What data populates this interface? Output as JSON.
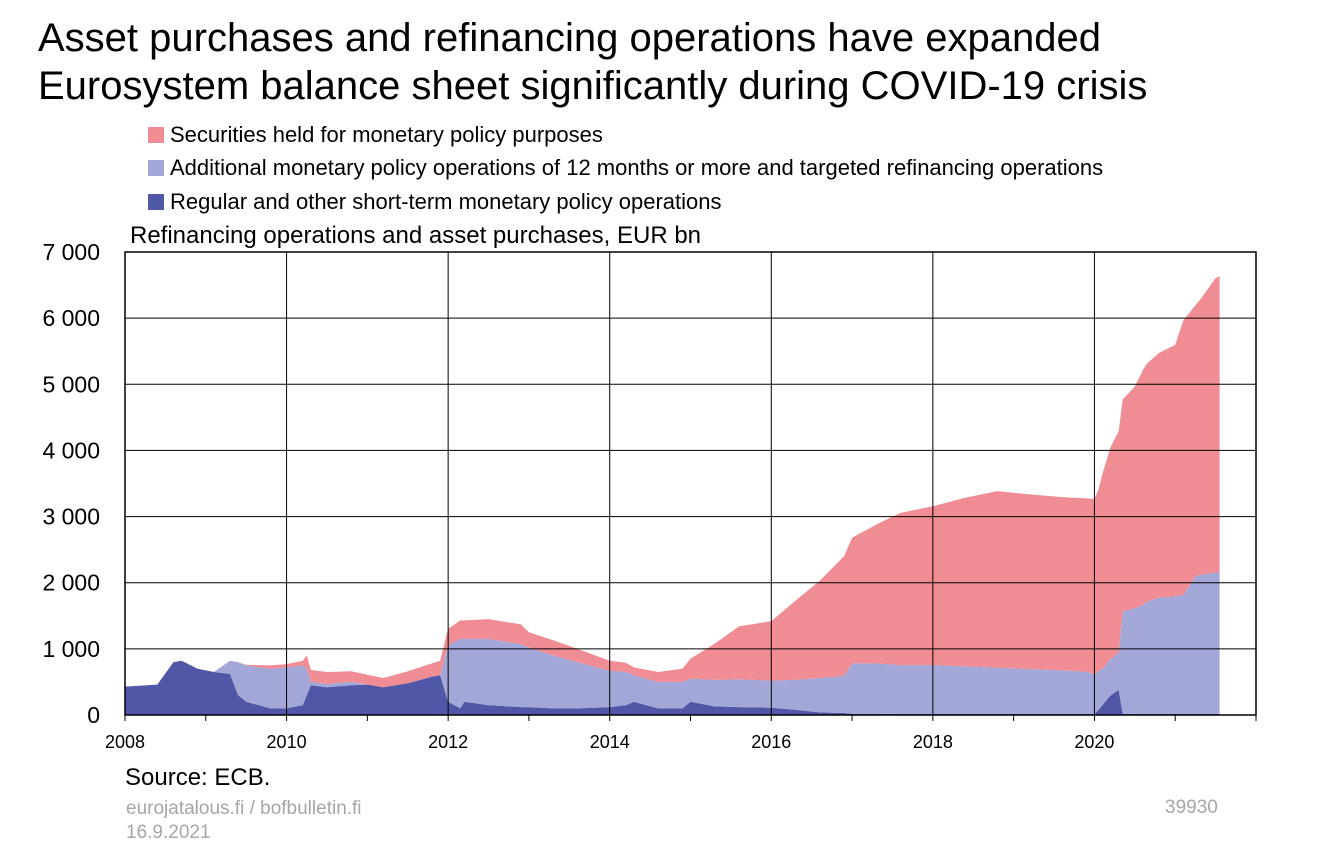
{
  "title": {
    "line1": "Asset purchases and refinancing operations have expanded",
    "line2": "Eurosystem balance sheet significantly during COVID-19 crisis"
  },
  "subtitle": "Refinancing operations and asset purchases, EUR bn",
  "source": "Source: ECB.",
  "footer": {
    "site": "eurojatalous.fi / bofbulletin.fi",
    "date": "16.9.2021",
    "code": "39930"
  },
  "chart_data": {
    "type": "area",
    "stacked": true,
    "grid": true,
    "xlim": [
      2008,
      2022
    ],
    "ylim": [
      0,
      7000
    ],
    "x_ticks": [
      "2008",
      "2010",
      "2012",
      "2014",
      "2016",
      "2018",
      "2020"
    ],
    "y_ticks": [
      "0",
      "1 000",
      "2 000",
      "3 000",
      "4 000",
      "5 000",
      "6 000",
      "7 000"
    ],
    "x": [
      2008.0,
      2008.4,
      2008.6,
      2008.7,
      2008.9,
      2009.1,
      2009.3,
      2009.4,
      2009.5,
      2009.8,
      2010.0,
      2010.2,
      2010.25,
      2010.3,
      2010.5,
      2010.8,
      2011.0,
      2011.2,
      2011.5,
      2011.8,
      2011.9,
      2012.0,
      2012.15,
      2012.2,
      2012.5,
      2012.9,
      2013.0,
      2013.3,
      2013.6,
      2014.0,
      2014.2,
      2014.3,
      2014.6,
      2014.9,
      2015.0,
      2015.3,
      2015.6,
      2016.0,
      2016.3,
      2016.6,
      2016.9,
      2017.0,
      2017.3,
      2017.6,
      2018.0,
      2018.4,
      2018.8,
      2019.2,
      2019.6,
      2019.9,
      2020.0,
      2020.05,
      2020.1,
      2020.2,
      2020.3,
      2020.35,
      2020.5,
      2020.6,
      2020.65,
      2020.8,
      2021.0,
      2021.1,
      2021.25,
      2021.3,
      2021.5,
      2021.55
    ],
    "series": [
      {
        "name": "Regular and other short-term monetary policy operations",
        "color": "#4f57a6",
        "values": [
          430,
          460,
          800,
          820,
          700,
          650,
          620,
          300,
          200,
          100,
          100,
          150,
          300,
          450,
          420,
          450,
          460,
          420,
          480,
          580,
          600,
          200,
          100,
          200,
          150,
          120,
          120,
          100,
          100,
          120,
          150,
          200,
          100,
          100,
          200,
          130,
          120,
          110,
          80,
          40,
          30,
          20,
          20,
          15,
          15,
          15,
          15,
          15,
          15,
          15,
          15,
          80,
          150,
          300,
          380,
          20,
          15,
          15,
          15,
          15,
          15,
          15,
          15,
          15,
          15,
          15
        ]
      },
      {
        "name": "Additional monetary policy operations of 12 months or more and targeted refinancing operations",
        "color": "#a3a7d8",
        "values": [
          0,
          0,
          0,
          0,
          0,
          0,
          200,
          500,
          550,
          600,
          620,
          600,
          400,
          50,
          50,
          50,
          0,
          0,
          0,
          0,
          0,
          850,
          1050,
          950,
          1000,
          950,
          900,
          800,
          700,
          550,
          500,
          400,
          400,
          400,
          350,
          400,
          420,
          410,
          450,
          520,
          560,
          760,
          760,
          740,
          740,
          720,
          700,
          680,
          660,
          640,
          600,
          580,
          550,
          550,
          560,
          1550,
          1600,
          1650,
          1700,
          1760,
          1780,
          1800,
          2080,
          2100,
          2140,
          2140
        ]
      },
      {
        "name": "Securities held for monetary policy purposes",
        "color": "#f08c93",
        "values": [
          0,
          0,
          0,
          0,
          0,
          0,
          0,
          0,
          10,
          50,
          50,
          70,
          200,
          180,
          180,
          160,
          150,
          140,
          180,
          200,
          220,
          250,
          280,
          280,
          300,
          300,
          230,
          230,
          200,
          150,
          140,
          120,
          150,
          200,
          300,
          550,
          800,
          900,
          1200,
          1470,
          1810,
          1900,
          2100,
          2300,
          2400,
          2550,
          2670,
          2640,
          2620,
          2620,
          2650,
          2750,
          2950,
          3200,
          3350,
          3200,
          3350,
          3550,
          3600,
          3700,
          3800,
          4150,
          4100,
          4150,
          4450,
          4480
        ]
      }
    ],
    "legend_order": [
      2,
      1,
      0
    ],
    "legend_position": "top"
  }
}
